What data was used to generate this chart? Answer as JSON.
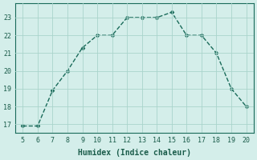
{
  "x": [
    5,
    6,
    7,
    8,
    9,
    10,
    11,
    12,
    13,
    14,
    15,
    16,
    17,
    18,
    19,
    20
  ],
  "y": [
    16.9,
    16.9,
    18.9,
    20.0,
    21.3,
    22.0,
    22.0,
    23.0,
    23.0,
    23.0,
    23.3,
    22.0,
    22.0,
    21.0,
    19.0,
    18.0
  ],
  "xlabel": "Humidex (Indice chaleur)",
  "xlim": [
    4.5,
    20.5
  ],
  "ylim": [
    16.5,
    23.8
  ],
  "xticks": [
    5,
    6,
    7,
    8,
    9,
    10,
    11,
    12,
    13,
    14,
    15,
    16,
    17,
    18,
    19,
    20
  ],
  "yticks": [
    17,
    18,
    19,
    20,
    21,
    22,
    23
  ],
  "line_color": "#1a6b5a",
  "bg_color": "#d4eeea",
  "grid_color": "#aad4cc",
  "text_color": "#1a5c4a",
  "marker": "D",
  "marker_size": 2.5,
  "linewidth": 1.0,
  "title_fontsize": 7,
  "tick_fontsize": 6,
  "xlabel_fontsize": 7
}
